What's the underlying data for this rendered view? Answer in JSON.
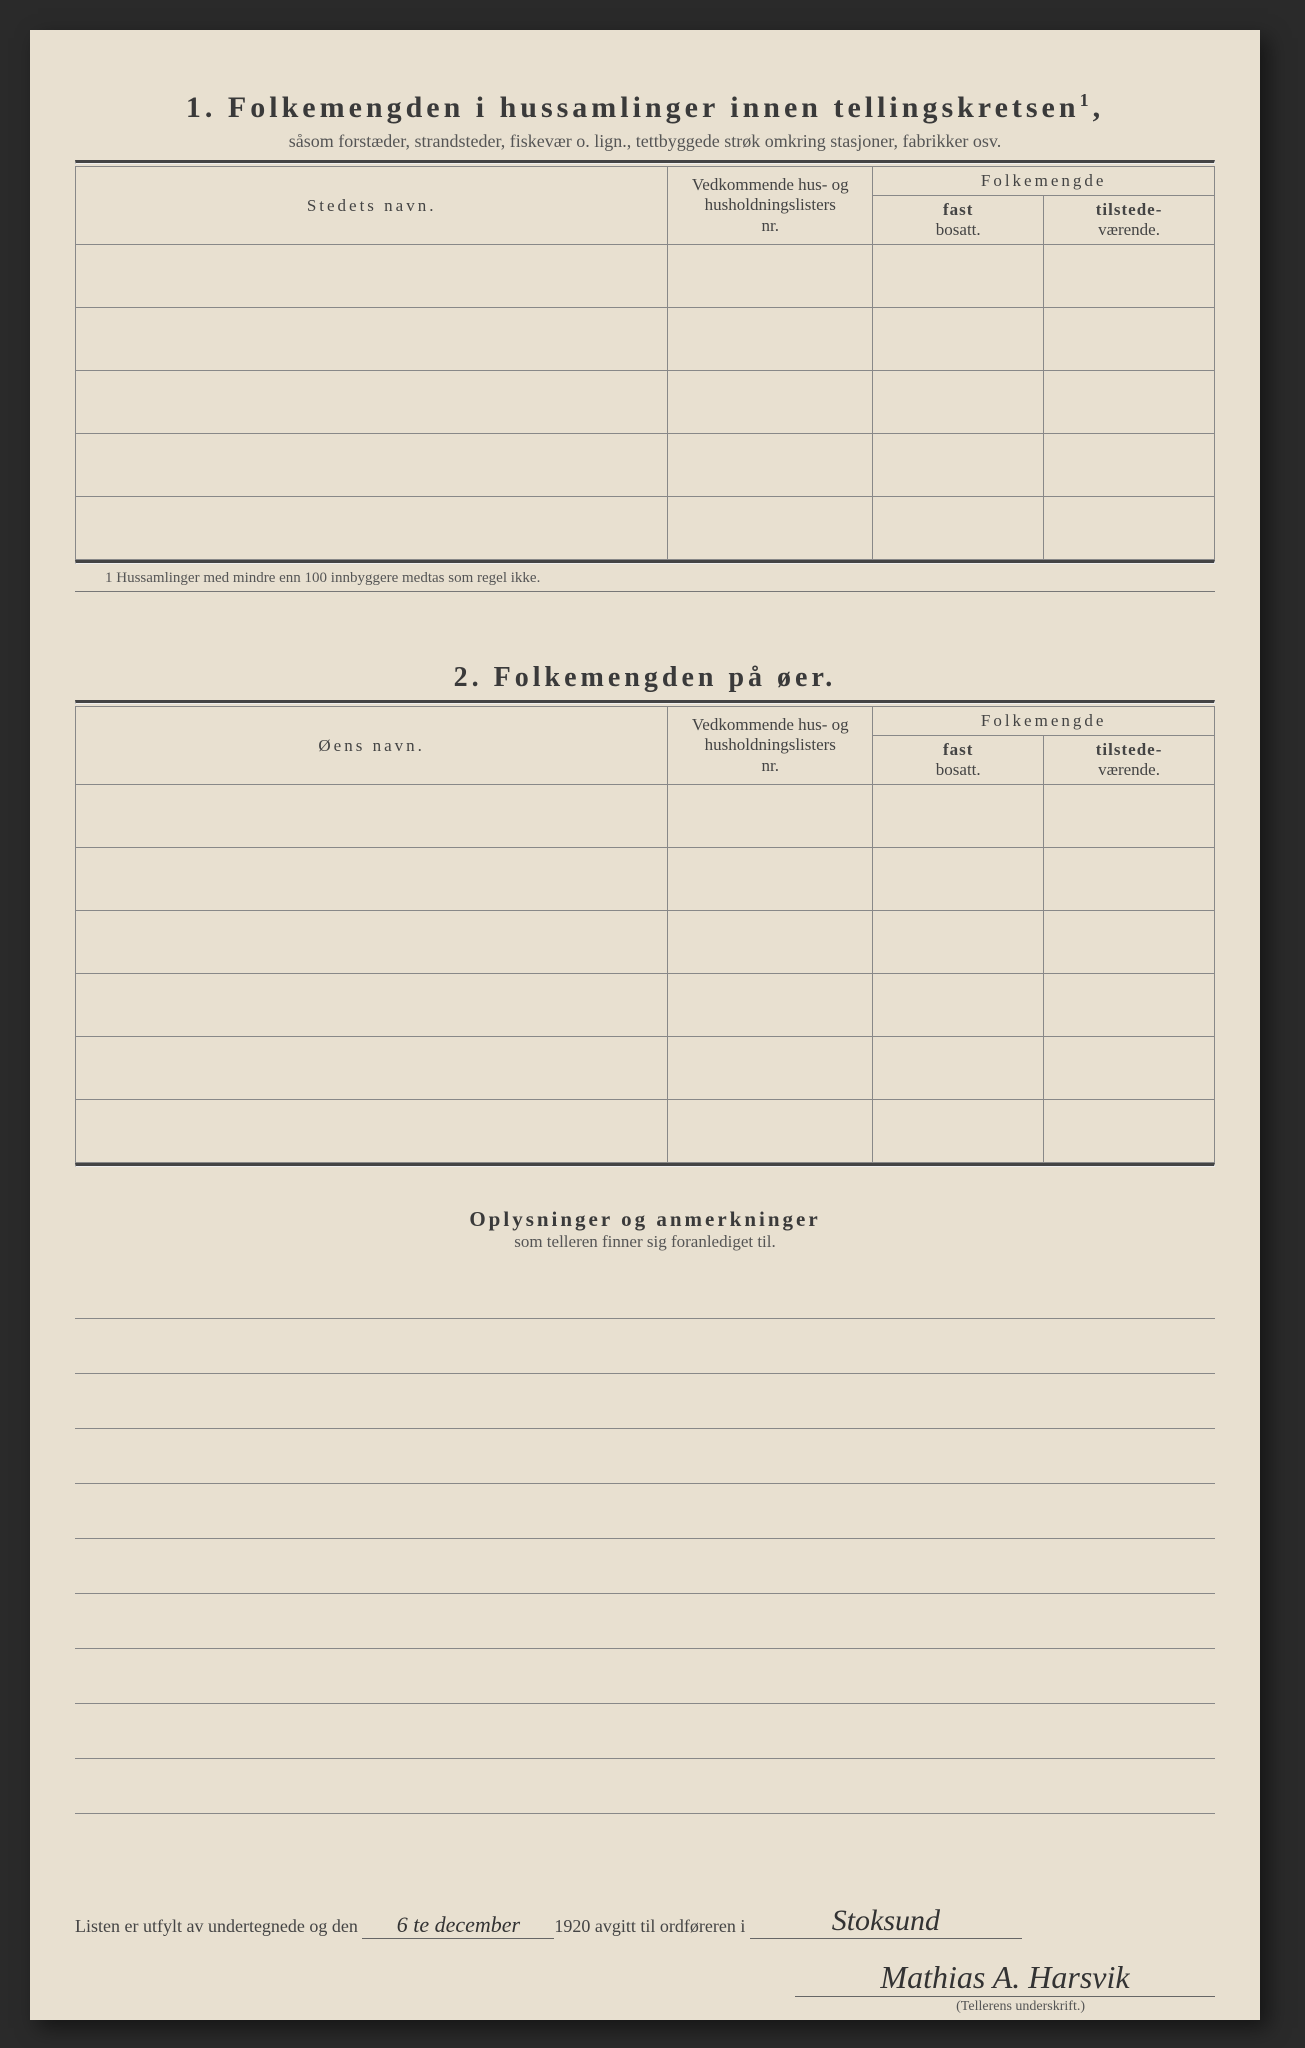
{
  "section1": {
    "number": "1.",
    "title": "Folkemengden i hussamlinger innen tellingskretsen",
    "title_sup": "1",
    "subtitle": "såsom forstæder, strandsteder, fiskevær o. lign., tettbyggede strøk omkring stasjoner, fabrikker osv.",
    "col_name": "Stedets navn.",
    "col_nr_line1": "Vedkommende hus- og",
    "col_nr_line2": "husholdningslisters",
    "col_nr_line3": "nr.",
    "col_folk": "Folkemengde",
    "col_fast_bold": "fast",
    "col_fast_sub": "bosatt.",
    "col_til_bold": "tilstede-",
    "col_til_sub": "værende.",
    "footnote": "1  Hussamlinger med mindre enn 100 innbyggere medtas som regel ikke.",
    "rows": [
      "",
      "",
      "",
      "",
      ""
    ]
  },
  "section2": {
    "number": "2.",
    "title": "Folkemengden på øer.",
    "col_name": "Øens navn.",
    "col_nr_line1": "Vedkommende hus- og",
    "col_nr_line2": "husholdningslisters",
    "col_nr_line3": "nr.",
    "col_folk": "Folkemengde",
    "col_fast_bold": "fast",
    "col_fast_sub": "bosatt.",
    "col_til_bold": "tilstede-",
    "col_til_sub": "værende.",
    "rows": [
      "",
      "",
      "",
      "",
      "",
      ""
    ]
  },
  "remarks": {
    "title": "Oplysninger og anmerkninger",
    "subtitle": "som telleren finner sig foranlediget til.",
    "lines": 10
  },
  "signature": {
    "prefix": "Listen er utfylt av undertegnede og den",
    "date_handwritten": "6 te december",
    "year_suffix": "1920  avgitt til ordføreren i",
    "place_handwritten": "Stoksund",
    "name_handwritten": "Mathias A. Harsvik",
    "caption": "(Tellerens underskrift.)"
  }
}
